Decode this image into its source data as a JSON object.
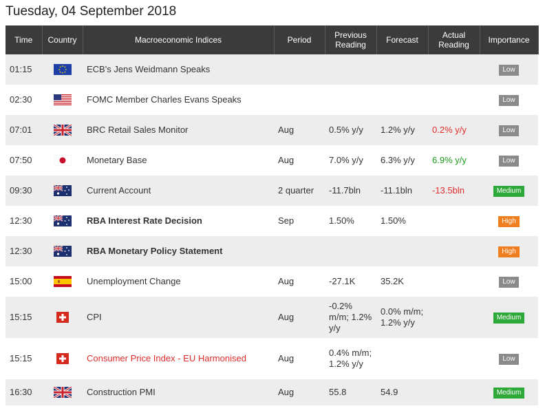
{
  "date": "Tuesday, 04 September 2018",
  "headers": {
    "time": "Time",
    "country": "Country",
    "index": "Macroeconomic Indices",
    "period": "Period",
    "previous": "Previous Reading",
    "forecast": "Forecast",
    "actual": "Actual Reading",
    "importance": "Importance"
  },
  "rows": [
    {
      "time": "01:15",
      "flag": "eu-flag-icon",
      "index": "ECB's Jens Weidmann Speaks",
      "period": "",
      "previous": "",
      "forecast": "",
      "actual": "",
      "importance": "Low"
    },
    {
      "time": "02:30",
      "flag": "us-flag-icon",
      "index": "FOMC Member Charles Evans Speaks",
      "period": "",
      "previous": "",
      "forecast": "",
      "actual": "",
      "importance": "Low"
    },
    {
      "time": "07:01",
      "flag": "uk-flag-icon",
      "index": "BRC Retail Sales Monitor",
      "period": "Aug",
      "previous": "0.5% y/y",
      "forecast": "1.2% y/y",
      "actual": "0.2% y/y",
      "importance": "Low"
    },
    {
      "time": "07:50",
      "flag": "japan-flag-icon",
      "index": "Monetary Base",
      "period": "Aug",
      "previous": "7.0% y/y",
      "forecast": "6.3% y/y",
      "actual": "6.9% y/y",
      "importance": "Low"
    },
    {
      "time": "09:30",
      "flag": "australia-flag-icon",
      "index": "Current Account",
      "period": "2 quarter",
      "previous": "-11.7bln",
      "forecast": "-11.1bln",
      "actual": "-13.5bln",
      "importance": "Medium"
    },
    {
      "time": "12:30",
      "flag": "australia-flag-icon",
      "index": "RBA Interest Rate Decision",
      "period": "Sep",
      "previous": "1.50%",
      "forecast": "1.50%",
      "actual": "",
      "importance": "High"
    },
    {
      "time": "12:30",
      "flag": "australia-flag-icon",
      "index": "RBA Monetary Policy Statement",
      "period": "",
      "previous": "",
      "forecast": "",
      "actual": "",
      "importance": "High"
    },
    {
      "time": "15:00",
      "flag": "spain-flag-icon",
      "index": "Unemployment Change",
      "period": "Aug",
      "previous": "-27.1K",
      "forecast": "35.2K",
      "actual": "",
      "importance": "Low"
    },
    {
      "time": "15:15",
      "flag": "switzerland-flag-icon",
      "index": "CPI",
      "period": "Aug",
      "previous": "-0.2% m/m; 1.2% y/y",
      "forecast": "0.0% m/m; 1.2% y/y",
      "actual": "",
      "importance": "Medium"
    },
    {
      "time": "15:15",
      "flag": "switzerland-flag-icon",
      "index": "Consumer Price Index - EU Harmonised",
      "period": "Aug",
      "previous": "0.4% m/m; 1.2% y/y",
      "forecast": "",
      "actual": "",
      "importance": "Low"
    },
    {
      "time": "16:30",
      "flag": "uk-flag-icon",
      "index": "Construction PMI",
      "period": "Aug",
      "previous": "55.8",
      "forecast": "54.9",
      "actual": "",
      "importance": "Medium"
    }
  ],
  "colors": {
    "header_bg": "#3b3b3b",
    "row_alt": "#ededed",
    "low": "#8a8a8a",
    "medium": "#2fa83a",
    "high": "#f07d1e",
    "negative": "#e02b2b",
    "positive": "#1a9a1a"
  }
}
